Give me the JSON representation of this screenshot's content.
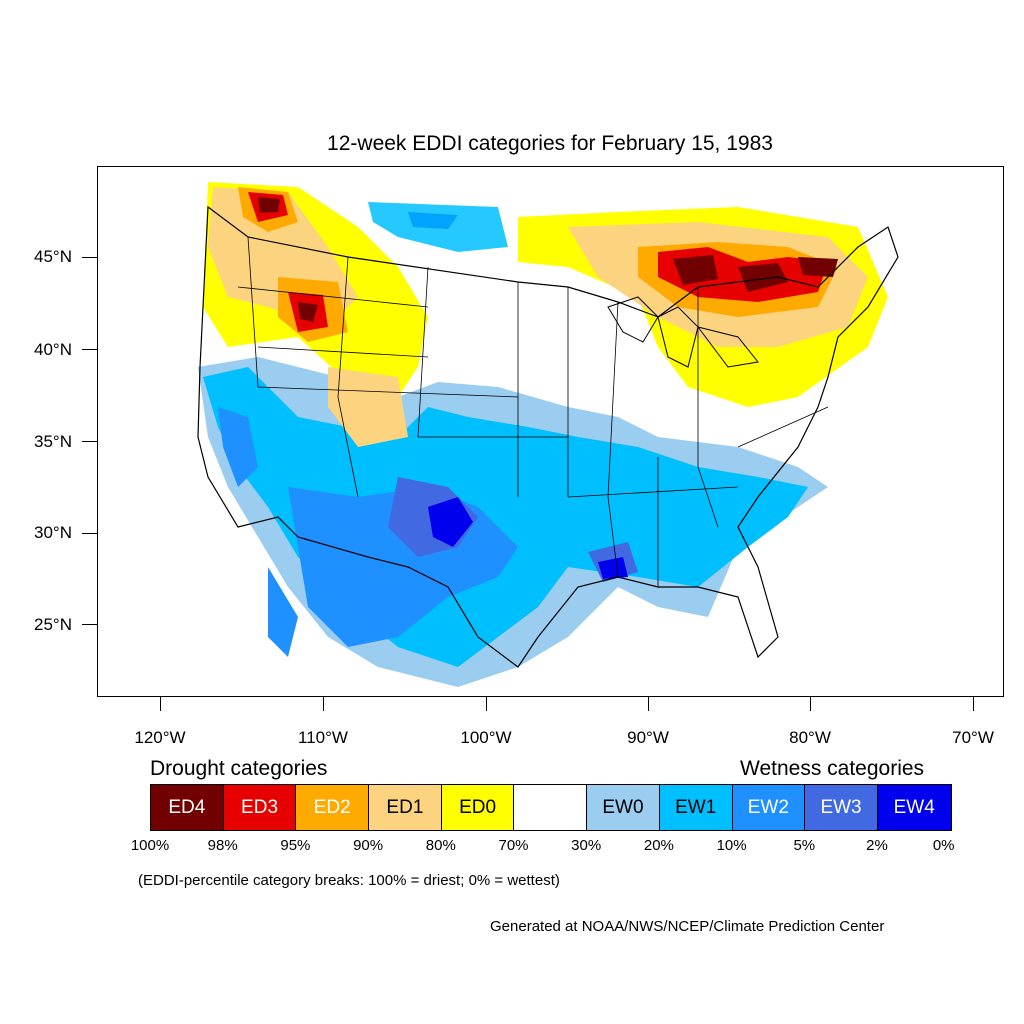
{
  "title": "12-week EDDI categories for February 15, 1983",
  "map": {
    "extent": {
      "lon_min": -124,
      "lon_max": -68,
      "lat_min": 21,
      "lat_max": 50
    },
    "lat_ticks": [
      {
        "lat": 45,
        "label": "45°N"
      },
      {
        "lat": 40,
        "label": "40°N"
      },
      {
        "lat": 35,
        "label": "35°N"
      },
      {
        "lat": 30,
        "label": "30°N"
      },
      {
        "lat": 25,
        "label": "25°N"
      }
    ],
    "lon_ticks": [
      {
        "lon": -120,
        "label": "120°W"
      },
      {
        "lon": -110,
        "label": "110°W"
      },
      {
        "lon": -100,
        "label": "100°W"
      },
      {
        "lon": -90,
        "label": "90°W"
      },
      {
        "lon": -80,
        "label": "80°W"
      },
      {
        "lon": -70,
        "label": "70°W"
      }
    ]
  },
  "legend": {
    "drought_heading": "Drought categories",
    "wetness_heading": "Wetness categories",
    "categories": [
      {
        "label": "ED4",
        "color": "#730000",
        "text_color": "#ffffff"
      },
      {
        "label": "ED3",
        "color": "#e60000",
        "text_color": "#ffffff"
      },
      {
        "label": "ED2",
        "color": "#ffaa00",
        "text_color": "#ffffff"
      },
      {
        "label": "ED1",
        "color": "#fcd37f",
        "text_color": "#000000"
      },
      {
        "label": "ED0",
        "color": "#ffff00",
        "text_color": "#000000"
      },
      {
        "label": "",
        "color": "#ffffff",
        "text_color": "#000000"
      },
      {
        "label": "EW0",
        "color": "#9acdf0",
        "text_color": "#000000"
      },
      {
        "label": "EW1",
        "color": "#00bfff",
        "text_color": "#000000"
      },
      {
        "label": "EW2",
        "color": "#1e90ff",
        "text_color": "#ffffff"
      },
      {
        "label": "EW3",
        "color": "#4169e1",
        "text_color": "#ffffff"
      },
      {
        "label": "EW4",
        "color": "#0000ee",
        "text_color": "#ffffff"
      }
    ],
    "breaks": [
      "100%",
      "98%",
      "95%",
      "90%",
      "80%",
      "70%",
      "30%",
      "20%",
      "10%",
      "5%",
      "2%",
      "0%"
    ]
  },
  "note": "(EDDI-percentile category breaks: 100% = driest; 0% = wettest)",
  "credit": "Generated at NOAA/NWS/NCEP/Climate Prediction Center"
}
